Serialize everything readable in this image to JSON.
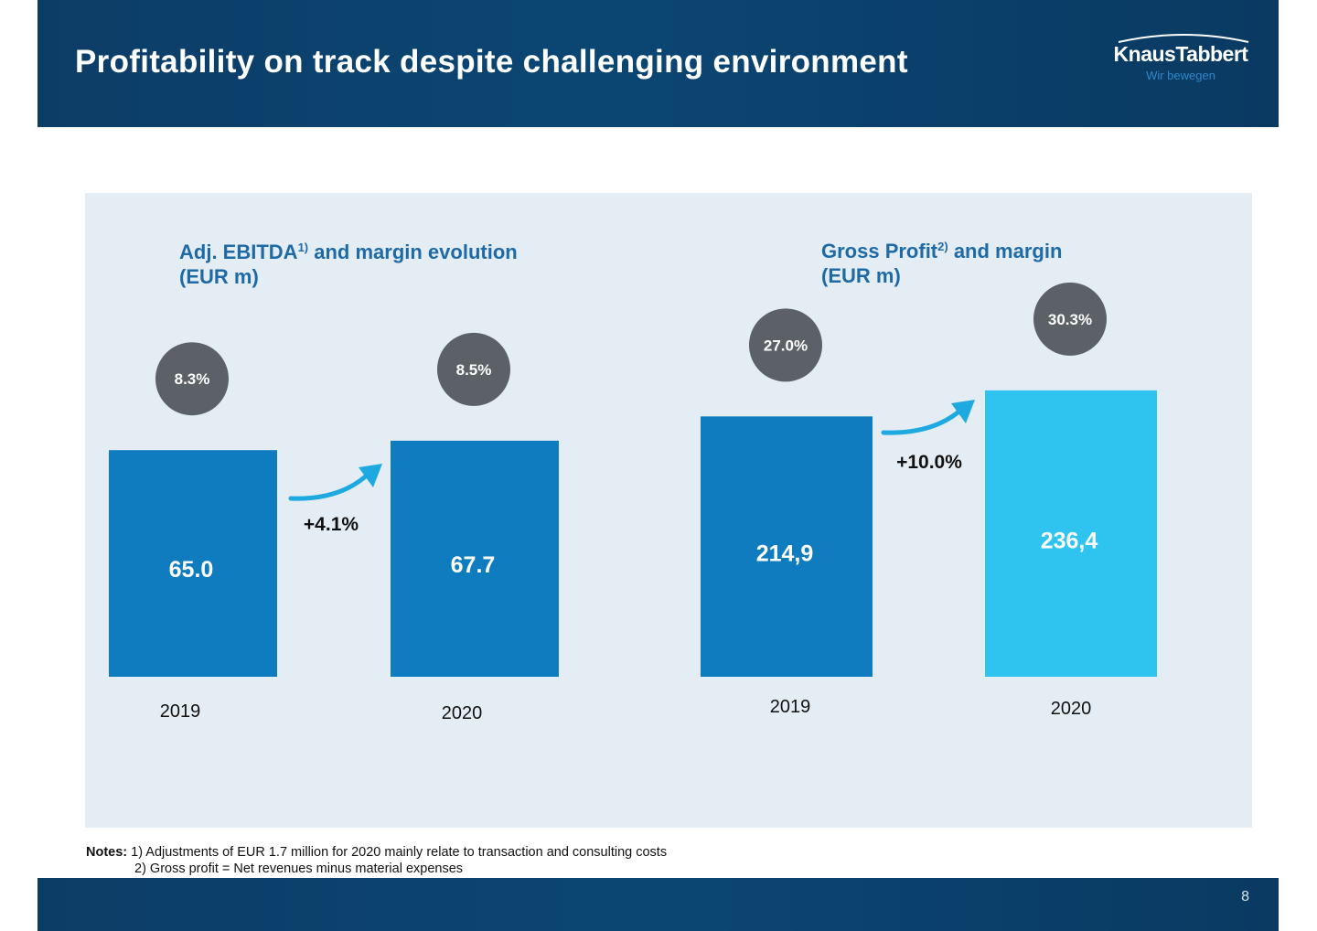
{
  "header": {
    "title": "Profitability on track despite challenging environment",
    "logo_name": "KnausTabbert",
    "logo_tagline": "Wir bewegen"
  },
  "colors": {
    "header_bg": "#0b4673",
    "panel_bg": "#e5edf4",
    "title_blue": "#1e6aa6",
    "bar_dark": "#0f7cc0",
    "bar_light": "#2ec4ef",
    "margin_circle": "#5b6166",
    "arrow": "#1ea9e1"
  },
  "chart_data": [
    {
      "type": "bar",
      "title_main": "Adj. EBITDA",
      "title_sup": "1)",
      "title_rest": " and margin evolution",
      "title_unit": "(EUR m)",
      "categories": [
        "2019",
        "2020"
      ],
      "values": [
        65.0,
        67.7
      ],
      "value_labels": [
        "65.0",
        "67.7"
      ],
      "margins": [
        "8.3%",
        "8.5%"
      ],
      "growth_label": "+4.1%",
      "bar_colors": [
        "#0f7cc0",
        "#0f7cc0"
      ],
      "ylim": [
        0,
        80
      ]
    },
    {
      "type": "bar",
      "title_main": "Gross Profit",
      "title_sup": "2)",
      "title_rest": " and margin",
      "title_unit": "(EUR m)",
      "categories": [
        "2019",
        "2020"
      ],
      "values": [
        214.9,
        236.4
      ],
      "value_labels": [
        "214,9",
        "236,4"
      ],
      "margins": [
        "27.0%",
        "30.3%"
      ],
      "growth_label": "+10.0%",
      "bar_colors": [
        "#0f7cc0",
        "#2ec4ef"
      ],
      "ylim": [
        0,
        268
      ]
    }
  ],
  "notes": {
    "label": "Notes:",
    "items": [
      "1)  Adjustments of EUR 1.7 million for 2020 mainly relate to transaction and consulting costs",
      "2) Gross profit = Net revenues minus material expenses"
    ]
  },
  "footer": {
    "page_number": "8"
  }
}
